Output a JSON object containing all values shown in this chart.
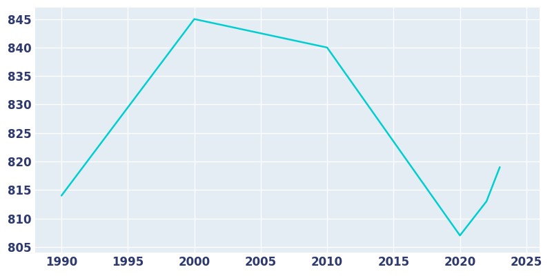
{
  "years": [
    1990,
    2000,
    2010,
    2020,
    2021,
    2022,
    2023
  ],
  "population": [
    814,
    845,
    840,
    807,
    810,
    813,
    819
  ],
  "line_color": "#00CED1",
  "plot_bg_color": "#E4ECF4",
  "fig_bg_color": "#FFFFFF",
  "grid_color": "#FFFFFF",
  "axis_label_color": "#2E3A6E",
  "xlim": [
    1988,
    2026
  ],
  "ylim": [
    804,
    847
  ],
  "xticks": [
    1990,
    1995,
    2000,
    2005,
    2010,
    2015,
    2020,
    2025
  ],
  "yticks": [
    805,
    810,
    815,
    820,
    825,
    830,
    835,
    840,
    845
  ],
  "linewidth": 1.8,
  "tick_fontsize": 12
}
